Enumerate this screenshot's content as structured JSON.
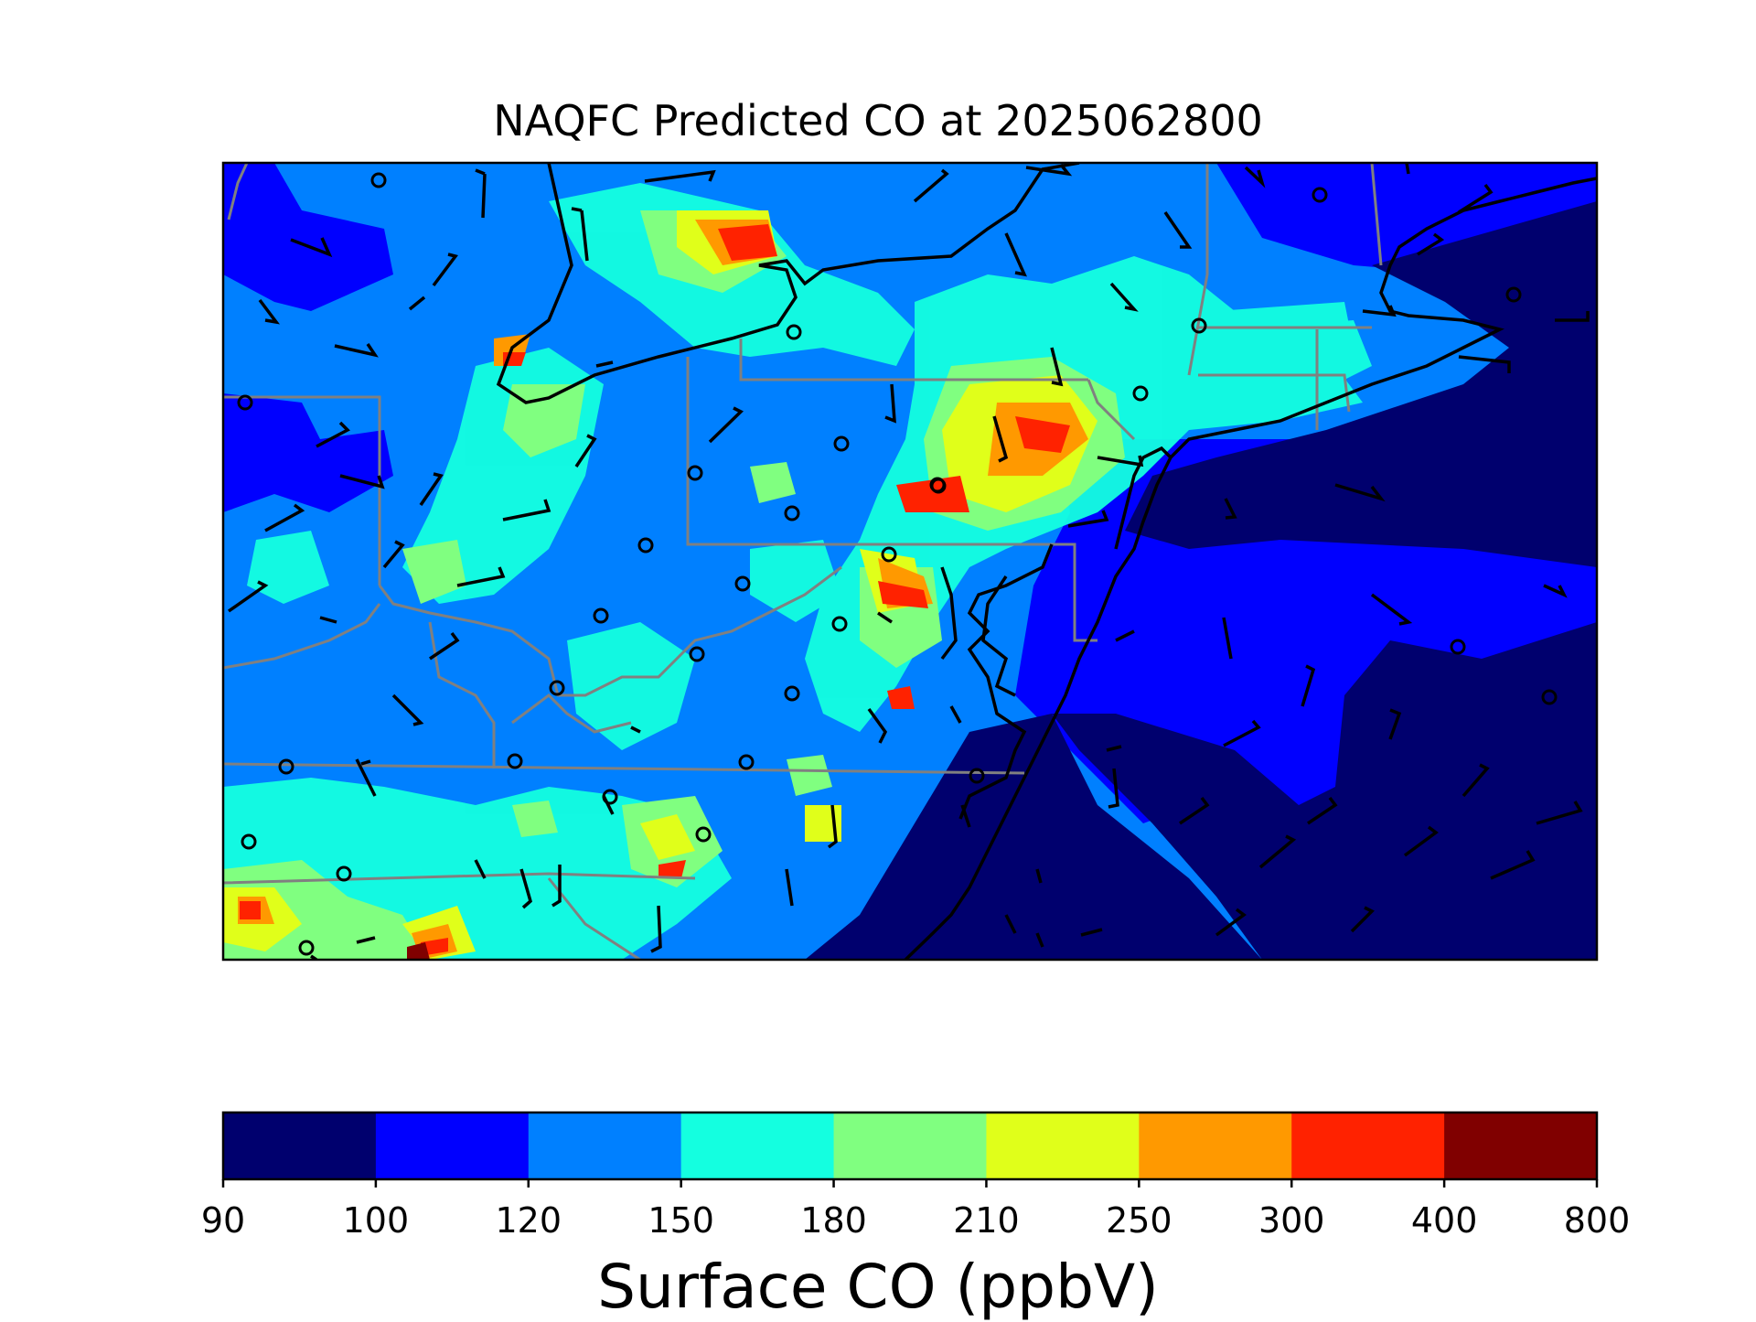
{
  "title": "NAQFC Predicted CO at 2025062800",
  "colorbar": {
    "label": "Surface CO (ppbV)",
    "ticks": [
      "90",
      "100",
      "120",
      "150",
      "180",
      "210",
      "250",
      "300",
      "400",
      "800"
    ],
    "colors": [
      "#00006e",
      "#0000ff",
      "#0080ff",
      "#14ffe0",
      "#80ff80",
      "#e0ff1a",
      "#ff9900",
      "#ff2200",
      "#800000"
    ]
  },
  "map": {
    "fill_colors": {
      "ocean": "#00006e",
      "low": "#0000ff",
      "base": "#0080ff",
      "cyan": "#14ffe0",
      "green": "#80ff80",
      "yellow": "#e0ff1a",
      "orange": "#ff9900",
      "red": "#ff2200",
      "darkred": "#800000"
    },
    "coastline_color": "#000000",
    "state_border_color": "#808080",
    "station_marker": "open-circle",
    "wind_symbol": "wind-barb"
  }
}
